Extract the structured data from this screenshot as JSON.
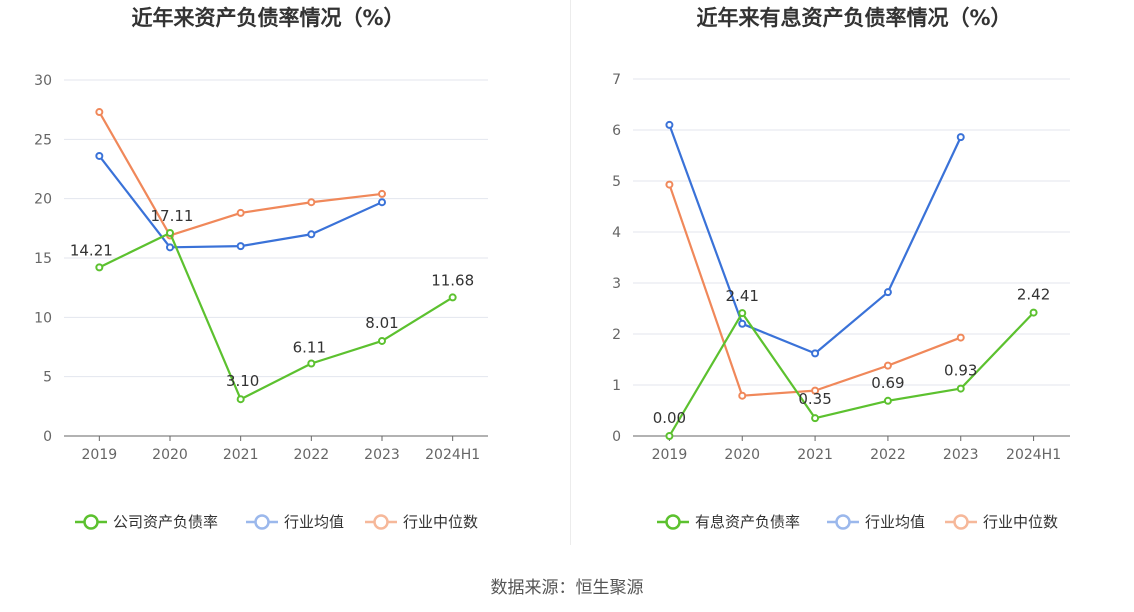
{
  "source": "数据来源：恒生聚源",
  "chart_data": [
    {
      "type": "line",
      "title": "近年来资产负债率情况（%）",
      "categories": [
        "2019",
        "2020",
        "2021",
        "2022",
        "2023",
        "2024H1"
      ],
      "ylim": [
        0,
        30
      ],
      "yticks": [
        "0",
        "5",
        "10",
        "15",
        "20",
        "25",
        "30"
      ],
      "grid": true,
      "legend_position": "bottom",
      "series": [
        {
          "name": "公司资产负债率",
          "color": "#5cc12f",
          "values": [
            14.21,
            17.11,
            3.1,
            6.11,
            8.01,
            11.68
          ],
          "labels": [
            "14.21",
            "17.11",
            "3.10",
            "6.11",
            "8.01",
            "11.68"
          ]
        },
        {
          "name": "行业均值",
          "color": "#3a72d8",
          "values": [
            23.6,
            15.9,
            16.0,
            17.0,
            19.7,
            null
          ]
        },
        {
          "name": "行业中位数",
          "color": "#f0885a",
          "values": [
            27.3,
            16.9,
            18.8,
            19.7,
            20.4,
            null
          ]
        }
      ]
    },
    {
      "type": "line",
      "title": "近年来有息资产负债率情况（%）",
      "categories": [
        "2019",
        "2020",
        "2021",
        "2022",
        "2023",
        "2024H1"
      ],
      "ylim": [
        0,
        7
      ],
      "yticks": [
        "0",
        "1",
        "2",
        "3",
        "4",
        "5",
        "6",
        "7"
      ],
      "grid": true,
      "legend_position": "bottom",
      "series": [
        {
          "name": "有息资产负债率",
          "color": "#5cc12f",
          "values": [
            0.0,
            2.41,
            0.35,
            0.69,
            0.93,
            2.42
          ],
          "labels": [
            "0.00",
            "2.41",
            "0.35",
            "0.69",
            "0.93",
            "2.42"
          ]
        },
        {
          "name": "行业均值",
          "color": "#3a72d8",
          "values": [
            6.1,
            2.2,
            1.62,
            2.82,
            5.86,
            null
          ]
        },
        {
          "name": "行业中位数",
          "color": "#f0885a",
          "values": [
            4.93,
            0.79,
            0.89,
            1.38,
            1.93,
            null
          ]
        }
      ]
    }
  ]
}
